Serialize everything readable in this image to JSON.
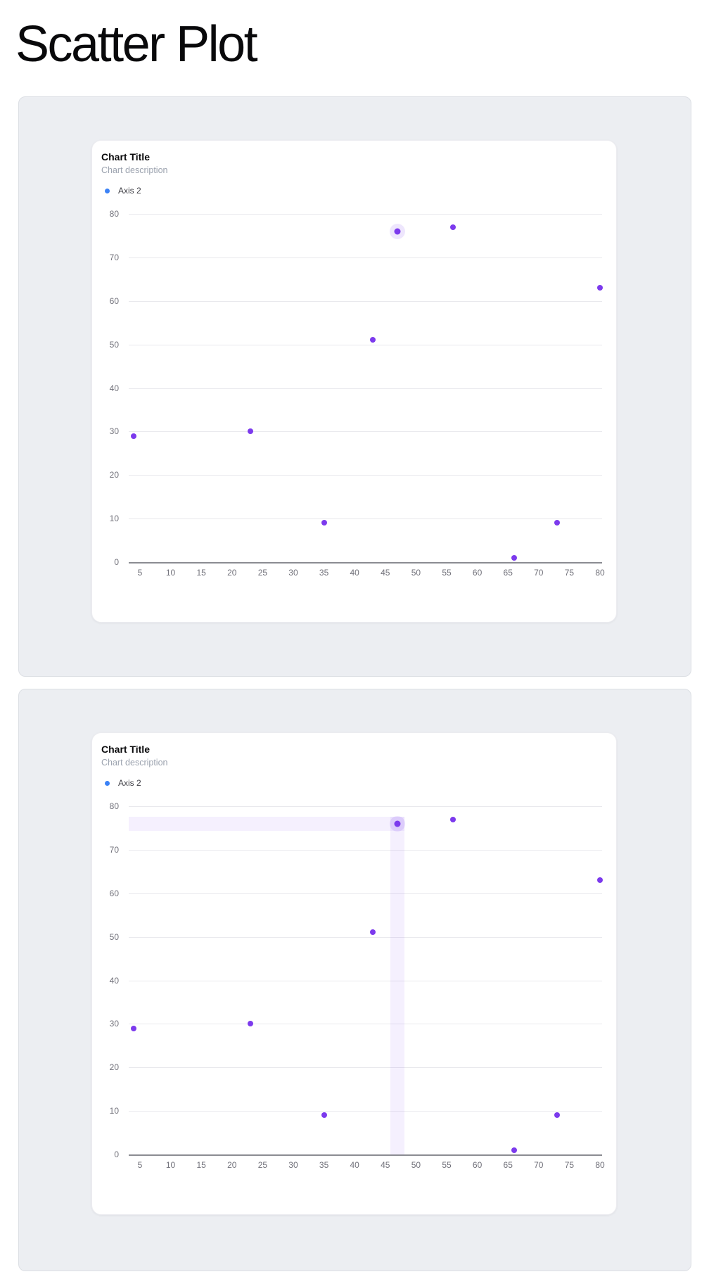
{
  "page": {
    "title": "Scatter Plot"
  },
  "colors": {
    "point": "#7c3aed",
    "legend-dot": "#3b82f6",
    "grid": "#e9e9ed",
    "axis": "#8b8c92",
    "tick": "#71717a",
    "band": "rgba(124,58,237,0.08)",
    "halo": "rgba(124,58,237,0.13)"
  },
  "chart_data": [
    {
      "type": "scatter",
      "title": "Chart Title",
      "subtitle": "Chart description",
      "legend_entries": [
        "Axis 2"
      ],
      "legend_position": "top-left",
      "grid": "horizontal-only",
      "x_ticks": [
        5,
        10,
        15,
        20,
        25,
        30,
        35,
        40,
        45,
        50,
        55,
        60,
        65,
        70,
        75,
        80
      ],
      "y_ticks": [
        0,
        10,
        20,
        30,
        40,
        50,
        60,
        70,
        80
      ],
      "x_domain": [
        3.17,
        80.34
      ],
      "y_domain": [
        0,
        80
      ],
      "series": [
        {
          "name": "Axis 2",
          "points": [
            [
              4,
              29
            ],
            [
              23,
              30
            ],
            [
              35,
              9
            ],
            [
              43,
              51
            ],
            [
              47,
              76
            ],
            [
              56,
              77
            ],
            [
              66,
              1
            ],
            [
              73,
              9
            ],
            [
              80,
              63
            ]
          ]
        }
      ],
      "highlighted_point": [
        47,
        76
      ],
      "crosshair_bands": false
    },
    {
      "type": "scatter",
      "title": "Chart Title",
      "subtitle": "Chart description",
      "legend_entries": [
        "Axis 2"
      ],
      "legend_position": "top-left",
      "grid": "horizontal-only",
      "x_ticks": [
        5,
        10,
        15,
        20,
        25,
        30,
        35,
        40,
        45,
        50,
        55,
        60,
        65,
        70,
        75,
        80
      ],
      "y_ticks": [
        0,
        10,
        20,
        30,
        40,
        50,
        60,
        70,
        80
      ],
      "x_domain": [
        3.17,
        80.34
      ],
      "y_domain": [
        0,
        80
      ],
      "series": [
        {
          "name": "Axis 2",
          "points": [
            [
              4,
              29
            ],
            [
              23,
              30
            ],
            [
              35,
              9
            ],
            [
              43,
              51
            ],
            [
              47,
              76
            ],
            [
              56,
              77
            ],
            [
              66,
              1
            ],
            [
              73,
              9
            ],
            [
              80,
              63
            ]
          ]
        }
      ],
      "highlighted_point": [
        47,
        76
      ],
      "crosshair_bands": true
    }
  ]
}
